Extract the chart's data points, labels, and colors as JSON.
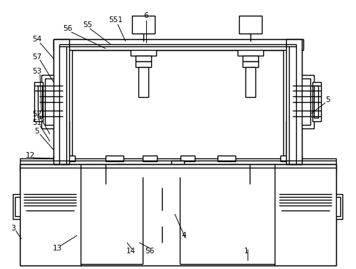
{
  "bg_color": "#ffffff",
  "line_color": "#000000",
  "lw": 1.0,
  "labels": [
    [
      "6",
      205,
      22
    ],
    [
      "56",
      95,
      40
    ],
    [
      "55",
      123,
      35
    ],
    [
      "551",
      162,
      28
    ],
    [
      "54",
      52,
      55
    ],
    [
      "57",
      52,
      80
    ],
    [
      "53",
      52,
      100
    ],
    [
      "52",
      52,
      160
    ],
    [
      "51",
      52,
      172
    ],
    [
      "5",
      52,
      184
    ],
    [
      "5",
      460,
      140
    ],
    [
      "12",
      42,
      218
    ],
    [
      "3",
      18,
      320
    ],
    [
      "13",
      80,
      348
    ],
    [
      "14",
      183,
      352
    ],
    [
      "56",
      210,
      352
    ],
    [
      "4",
      258,
      330
    ],
    [
      "1",
      345,
      352
    ]
  ],
  "leader_lines": [
    [
      205,
      28,
      205,
      60
    ],
    [
      100,
      45,
      148,
      68
    ],
    [
      126,
      40,
      155,
      62
    ],
    [
      165,
      34,
      176,
      58
    ],
    [
      56,
      60,
      75,
      82
    ],
    [
      56,
      84,
      75,
      115
    ],
    [
      56,
      104,
      58,
      155
    ],
    [
      56,
      164,
      70,
      188
    ],
    [
      56,
      176,
      70,
      198
    ],
    [
      56,
      188,
      75,
      210
    ],
    [
      456,
      144,
      435,
      160
    ],
    [
      46,
      221,
      75,
      222
    ],
    [
      22,
      323,
      30,
      335
    ],
    [
      84,
      345,
      108,
      330
    ],
    [
      185,
      349,
      178,
      340
    ],
    [
      212,
      349,
      195,
      340
    ],
    [
      260,
      334,
      245,
      300
    ],
    [
      347,
      349,
      347,
      365
    ]
  ]
}
